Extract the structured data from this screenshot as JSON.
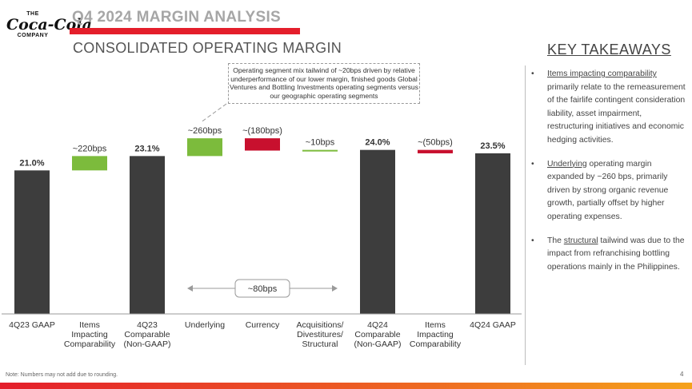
{
  "header": {
    "logo": {
      "the": "THE",
      "brand": "Coca-Cola",
      "company": "COMPANY"
    },
    "section_title": "Q4 2024 MARGIN ANALYSIS",
    "chart_title": "CONSOLIDATED OPERATING MARGIN"
  },
  "callout": "Operating segment mix tailwind of ~20bps driven by relative underperformance of our lower margin, finished goods Global Ventures and Bottling Investments operating segments versus our geographic operating segments",
  "key_takeaways": {
    "heading": "KEY TAKEAWAYS",
    "items": [
      {
        "underlined": "Items impacting comparability",
        "rest": " primarily relate to the remeasurement of the fairlife contingent consideration liability, asset impairment, restructuring initiatives and economic hedging activities."
      },
      {
        "prefix": "",
        "underlined": "Underlying",
        "rest": " operating margin expanded by ~260 bps, primarily driven by strong organic revenue growth, partially offset by higher operating expenses."
      },
      {
        "prefix": "The ",
        "underlined": "structural",
        "rest": " tailwind was due to the impact from refranchising bottling operations mainly in the Philippines."
      }
    ],
    "bullet": "•"
  },
  "chart_data": {
    "type": "bar",
    "subtype": "waterfall",
    "title": "CONSOLIDATED OPERATING MARGIN",
    "ylabel": "",
    "y_unit": "%",
    "ylim": [
      0,
      27
    ],
    "grid": false,
    "categories": [
      "4Q23 GAAP",
      "Items Impacting Comparability",
      "4Q23 Comparable (Non-GAAP)",
      "Underlying",
      "Currency",
      "Acquisitions/ Divestitures/ Structural",
      "4Q24 Comparable (Non-GAAP)",
      "Items Impacting Comparability",
      "4Q24 GAAP"
    ],
    "category_lines": [
      [
        "4Q23 GAAP"
      ],
      [
        "Items",
        "Impacting",
        "Comparability"
      ],
      [
        "4Q23",
        "Comparable",
        "(Non-GAAP)"
      ],
      [
        "Underlying"
      ],
      [
        "Currency"
      ],
      [
        "Acquisitions/",
        "Divestitures/",
        "Structural"
      ],
      [
        "4Q24",
        "Comparable",
        "(Non-GAAP)"
      ],
      [
        "Items",
        "Impacting",
        "Comparability"
      ],
      [
        "4Q24 GAAP"
      ]
    ],
    "bars": [
      {
        "kind": "total",
        "value": 21.0,
        "label": "21.0%"
      },
      {
        "kind": "increase",
        "start": 21.0,
        "end": 23.1,
        "label": "~220bps"
      },
      {
        "kind": "total",
        "value": 23.1,
        "label": "23.1%"
      },
      {
        "kind": "increase",
        "start": 23.1,
        "end": 25.7,
        "label": "~260bps"
      },
      {
        "kind": "decrease",
        "start": 25.7,
        "end": 23.9,
        "label": "~(180bps)"
      },
      {
        "kind": "increase",
        "start": 23.9,
        "end": 24.0,
        "label": "~10bps"
      },
      {
        "kind": "total",
        "value": 24.0,
        "label": "24.0%"
      },
      {
        "kind": "decrease",
        "start": 24.0,
        "end": 23.5,
        "label": "~(50bps)"
      },
      {
        "kind": "total",
        "value": 23.5,
        "label": "23.5%"
      }
    ],
    "bracket": {
      "from_index": 3,
      "to_index": 5,
      "label": "~80bps"
    },
    "colors": {
      "total": "#3d3d3d",
      "increase": "#7cbb3c",
      "decrease": "#c8102e",
      "axis": "#9a9a9a",
      "text": "#333333"
    }
  },
  "footnote": "Note: Numbers may not add due to rounding.",
  "page_number": "4",
  "colors": {
    "accent_red": "#e41e2b",
    "title_gray": "#a6a6a6"
  }
}
